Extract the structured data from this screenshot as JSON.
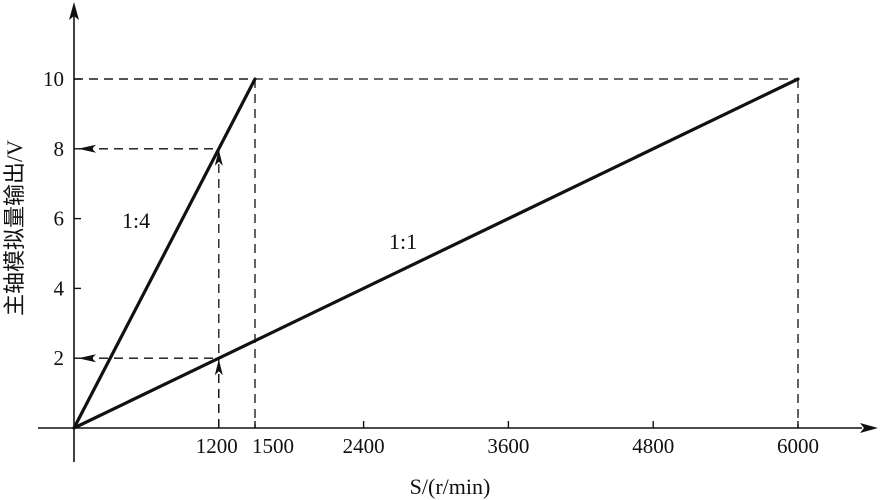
{
  "chart_data": {
    "type": "line",
    "xlabel": "S/(r/min)",
    "ylabel": "主轴模拟量输出/V",
    "xlim": [
      0,
      6000
    ],
    "ylim": [
      0,
      10
    ],
    "x_ticks": [
      1200,
      1500,
      2400,
      3600,
      4800,
      6000
    ],
    "y_ticks": [
      2,
      4,
      6,
      8,
      10
    ],
    "series": [
      {
        "name": "1:4",
        "x": [
          0,
          1500
        ],
        "y": [
          0,
          10
        ]
      },
      {
        "name": "1:1",
        "x": [
          0,
          6000
        ],
        "y": [
          0,
          10
        ]
      }
    ],
    "annotations": [
      {
        "type": "readout",
        "x": 1200,
        "y": 8,
        "series": "1:4"
      },
      {
        "type": "readout",
        "x": 1200,
        "y": 2,
        "series": "1:1"
      }
    ],
    "reference_lines": [
      {
        "x": 1500,
        "y": 10
      },
      {
        "x": 6000,
        "y": 10
      }
    ]
  }
}
